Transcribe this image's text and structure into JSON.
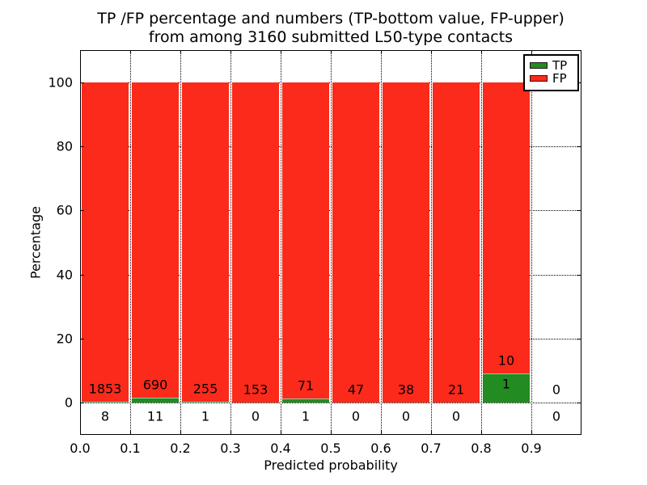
{
  "figure": {
    "title_line1": "TP /FP percentage and numbers (TP-bottom value, FP-upper)",
    "title_line2": "from among 3160 submitted L50-type contacts"
  },
  "chart_data": {
    "type": "bar",
    "subtype": "stacked-percentage-histogram",
    "title": "TP /FP percentage and numbers (TP-bottom value, FP-upper) from among 3160 submitted L50-type contacts",
    "xlabel": "Predicted probability",
    "ylabel": "Percentage",
    "total_submitted": 3160,
    "xlim": [
      0.0,
      1.0
    ],
    "ylim": [
      -10,
      110
    ],
    "xticks": [
      0.0,
      0.1,
      0.2,
      0.3,
      0.4,
      0.5,
      0.6,
      0.7,
      0.8,
      0.9
    ],
    "yticks": [
      0,
      20,
      40,
      60,
      80,
      100
    ],
    "grid": "dotted",
    "bin_width": 0.1,
    "categories": [
      "0.0-0.1",
      "0.1-0.2",
      "0.2-0.3",
      "0.3-0.4",
      "0.4-0.5",
      "0.5-0.6",
      "0.6-0.7",
      "0.7-0.8",
      "0.8-0.9",
      "0.9-1.0"
    ],
    "series": [
      {
        "name": "TP",
        "color": "#228b22",
        "counts": [
          8,
          11,
          1,
          0,
          1,
          0,
          0,
          0,
          1,
          0
        ]
      },
      {
        "name": "FP",
        "color": "#fb2a1b",
        "counts": [
          1853,
          690,
          255,
          153,
          71,
          47,
          38,
          21,
          10,
          0
        ]
      }
    ],
    "legend": {
      "position": "upper right",
      "entries": [
        {
          "label": "TP",
          "color": "#228b22"
        },
        {
          "label": "FP",
          "color": "#fb2a1b"
        }
      ]
    },
    "note": "bars normalized to 100% per bin; TP count shown at bottom, FP count above"
  }
}
